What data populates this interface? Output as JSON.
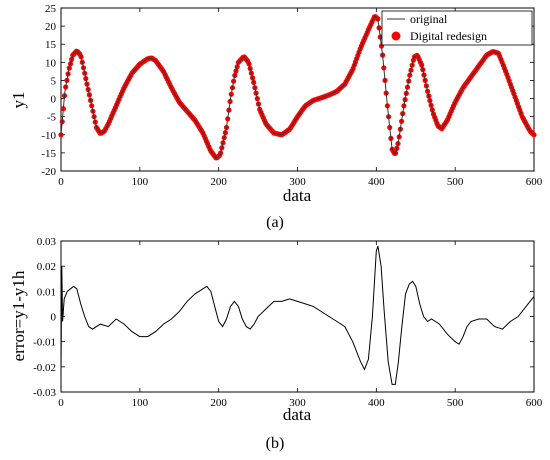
{
  "figure": {
    "caption_a": "(a)",
    "caption_b": "(b)"
  },
  "chart_data": [
    {
      "type": "line",
      "xlabel": "data",
      "ylabel": "y1",
      "xlim": [
        0,
        600
      ],
      "ylim": [
        -20,
        25
      ],
      "xticks": [
        0,
        100,
        200,
        300,
        400,
        500,
        600
      ],
      "yticks": [
        -20,
        -15,
        -10,
        -5,
        0,
        5,
        10,
        15,
        20,
        25
      ],
      "grid": false,
      "legend_position": "top-right",
      "series": [
        {
          "name": "original",
          "style": "line",
          "color": "#333333",
          "points": [
            [
              0,
              -10
            ],
            [
              5,
              2
            ],
            [
              10,
              8
            ],
            [
              15,
              12
            ],
            [
              20,
              13.2
            ],
            [
              25,
              12
            ],
            [
              30,
              7
            ],
            [
              35,
              2
            ],
            [
              40,
              -3
            ],
            [
              45,
              -8
            ],
            [
              50,
              -9.7
            ],
            [
              55,
              -9
            ],
            [
              60,
              -7
            ],
            [
              70,
              -2
            ],
            [
              80,
              3
            ],
            [
              90,
              7
            ],
            [
              100,
              9.5
            ],
            [
              110,
              11
            ],
            [
              115,
              11.2
            ],
            [
              120,
              10.5
            ],
            [
              130,
              7.5
            ],
            [
              140,
              3
            ],
            [
              150,
              -1
            ],
            [
              160,
              -3.5
            ],
            [
              170,
              -6
            ],
            [
              180,
              -9.5
            ],
            [
              190,
              -14.5
            ],
            [
              197,
              -16.5
            ],
            [
              202,
              -15.5
            ],
            [
              210,
              -8
            ],
            [
              215,
              0
            ],
            [
              220,
              6
            ],
            [
              225,
              10
            ],
            [
              232,
              11.6
            ],
            [
              238,
              10
            ],
            [
              245,
              4
            ],
            [
              252,
              -3
            ],
            [
              260,
              -7
            ],
            [
              270,
              -9.5
            ],
            [
              280,
              -10
            ],
            [
              290,
              -8.5
            ],
            [
              300,
              -5
            ],
            [
              310,
              -2
            ],
            [
              320,
              -0.5
            ],
            [
              330,
              0.2
            ],
            [
              340,
              1
            ],
            [
              350,
              2
            ],
            [
              360,
              4
            ],
            [
              370,
              8
            ],
            [
              380,
              14
            ],
            [
              390,
              19
            ],
            [
              398,
              22.8
            ],
            [
              402,
              22
            ],
            [
              408,
              12
            ],
            [
              414,
              -2
            ],
            [
              420,
              -14
            ],
            [
              424,
              -15.5
            ],
            [
              428,
              -12
            ],
            [
              435,
              -2
            ],
            [
              442,
              6
            ],
            [
              448,
              11.5
            ],
            [
              452,
              12
            ],
            [
              458,
              9
            ],
            [
              465,
              2
            ],
            [
              472,
              -4
            ],
            [
              478,
              -7.5
            ],
            [
              483,
              -8.3
            ],
            [
              490,
              -6
            ],
            [
              500,
              -1
            ],
            [
              510,
              3
            ],
            [
              520,
              6
            ],
            [
              530,
              9
            ],
            [
              540,
              12
            ],
            [
              548,
              13
            ],
            [
              555,
              12.5
            ],
            [
              565,
              7
            ],
            [
              575,
              1
            ],
            [
              585,
              -5
            ],
            [
              595,
              -9
            ],
            [
              600,
              -10
            ]
          ]
        },
        {
          "name": "Digital redesign",
          "style": "markers",
          "color": "#ff0000"
        }
      ]
    },
    {
      "type": "line",
      "xlabel": "data",
      "ylabel": "error=y1-y1h",
      "xlim": [
        0,
        600
      ],
      "ylim": [
        -0.03,
        0.03
      ],
      "xticks": [
        0,
        100,
        200,
        300,
        400,
        500,
        600
      ],
      "yticks": [
        "-0.03",
        "-0.02",
        "-0.01",
        "0",
        "0.01",
        "0.02",
        "0.03"
      ],
      "grid": false,
      "series": [
        {
          "style": "line",
          "color": "#000000",
          "points": [
            [
              0,
              -0.022
            ],
            [
              1,
              0.02
            ],
            [
              2,
              -0.002
            ],
            [
              4,
              0.007
            ],
            [
              8,
              0.01
            ],
            [
              12,
              0.011
            ],
            [
              16,
              0.012
            ],
            [
              20,
              0.011
            ],
            [
              25,
              0.005
            ],
            [
              30,
              0.0
            ],
            [
              35,
              -0.004
            ],
            [
              40,
              -0.005
            ],
            [
              50,
              -0.003
            ],
            [
              60,
              -0.004
            ],
            [
              70,
              -0.001
            ],
            [
              80,
              -0.003
            ],
            [
              90,
              -0.006
            ],
            [
              100,
              -0.008
            ],
            [
              110,
              -0.008
            ],
            [
              120,
              -0.006
            ],
            [
              130,
              -0.003
            ],
            [
              140,
              -0.001
            ],
            [
              150,
              0.002
            ],
            [
              160,
              0.006
            ],
            [
              170,
              0.009
            ],
            [
              180,
              0.011
            ],
            [
              185,
              0.012
            ],
            [
              190,
              0.01
            ],
            [
              195,
              0.004
            ],
            [
              200,
              -0.002
            ],
            [
              205,
              -0.004
            ],
            [
              210,
              -0.001
            ],
            [
              215,
              0.004
            ],
            [
              220,
              0.006
            ],
            [
              225,
              0.004
            ],
            [
              230,
              -0.001
            ],
            [
              235,
              -0.004
            ],
            [
              240,
              -0.005
            ],
            [
              245,
              -0.003
            ],
            [
              250,
              0.0
            ],
            [
              260,
              0.003
            ],
            [
              270,
              0.006
            ],
            [
              280,
              0.006
            ],
            [
              290,
              0.007
            ],
            [
              300,
              0.006
            ],
            [
              310,
              0.005
            ],
            [
              320,
              0.004
            ],
            [
              330,
              0.002
            ],
            [
              340,
              0.0
            ],
            [
              350,
              -0.002
            ],
            [
              360,
              -0.004
            ],
            [
              370,
              -0.01
            ],
            [
              380,
              -0.018
            ],
            [
              385,
              -0.021
            ],
            [
              390,
              -0.017
            ],
            [
              395,
              0.0
            ],
            [
              400,
              0.026
            ],
            [
              402,
              0.028
            ],
            [
              406,
              0.02
            ],
            [
              410,
              0.002
            ],
            [
              415,
              -0.018
            ],
            [
              420,
              -0.027
            ],
            [
              424,
              -0.027
            ],
            [
              428,
              -0.018
            ],
            [
              432,
              -0.005
            ],
            [
              437,
              0.009
            ],
            [
              442,
              0.013
            ],
            [
              446,
              0.014
            ],
            [
              450,
              0.012
            ],
            [
              455,
              0.005
            ],
            [
              460,
              0.0
            ],
            [
              465,
              -0.002
            ],
            [
              470,
              -0.001
            ],
            [
              480,
              -0.003
            ],
            [
              490,
              -0.007
            ],
            [
              500,
              -0.01
            ],
            [
              505,
              -0.011
            ],
            [
              510,
              -0.008
            ],
            [
              515,
              -0.004
            ],
            [
              520,
              -0.002
            ],
            [
              530,
              -0.001
            ],
            [
              540,
              -0.001
            ],
            [
              550,
              -0.004
            ],
            [
              560,
              -0.005
            ],
            [
              570,
              -0.002
            ],
            [
              580,
              0.0
            ],
            [
              590,
              0.004
            ],
            [
              600,
              0.008
            ]
          ]
        }
      ]
    }
  ]
}
